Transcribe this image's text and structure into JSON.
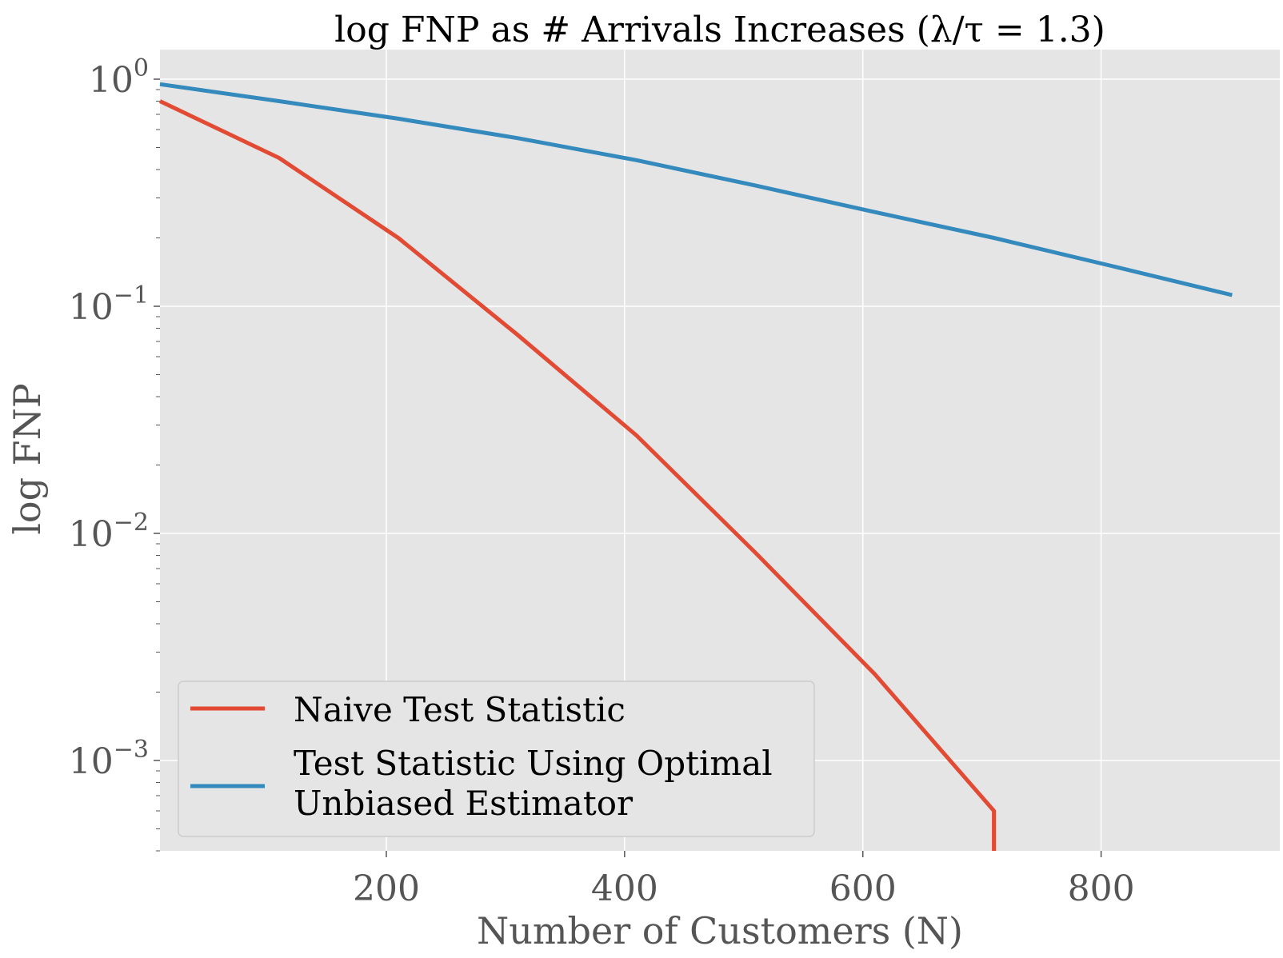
{
  "chart_data": {
    "type": "line",
    "title": "log FNP as # Arrivals Increases (λ/τ = 1.3)",
    "xlabel": "Number of Customers (N)",
    "ylabel": "log FNP",
    "xlim": [
      10,
      950
    ],
    "ylim": [
      0.0004,
      1.35
    ],
    "yscale": "log",
    "grid": true,
    "background": "#e5e5e5",
    "x_ticks": [
      200,
      400,
      600,
      800
    ],
    "x_tick_labels": [
      "200",
      "400",
      "600",
      "800"
    ],
    "y_ticks": [
      {
        "value": 1,
        "base": "10",
        "exp": "0"
      },
      {
        "value": 0.1,
        "base": "10",
        "exp": "−1"
      },
      {
        "value": 0.01,
        "base": "10",
        "exp": "−2"
      },
      {
        "value": 0.001,
        "base": "10",
        "exp": "−3"
      }
    ],
    "legend": {
      "position": "lower-left",
      "entries": [
        "Naive Test Statistic",
        "Test Statistic Using Optimal",
        "Unbiased Estimator"
      ]
    },
    "series": [
      {
        "name": "Naive Test Statistic",
        "color": "#e24a33",
        "x": [
          10,
          110,
          210,
          310,
          410,
          510,
          610,
          710,
          710
        ],
        "y": [
          0.8,
          0.45,
          0.2,
          0.075,
          0.027,
          0.0082,
          0.0024,
          0.0006,
          0.0004
        ]
      },
      {
        "name": "Test Statistic Using Optimal Unbiased Estimator",
        "color": "#348abd",
        "x": [
          10,
          110,
          210,
          310,
          410,
          510,
          610,
          710,
          810,
          910
        ],
        "y": [
          0.95,
          0.8,
          0.67,
          0.55,
          0.44,
          0.34,
          0.26,
          0.2,
          0.15,
          0.112
        ]
      }
    ]
  }
}
